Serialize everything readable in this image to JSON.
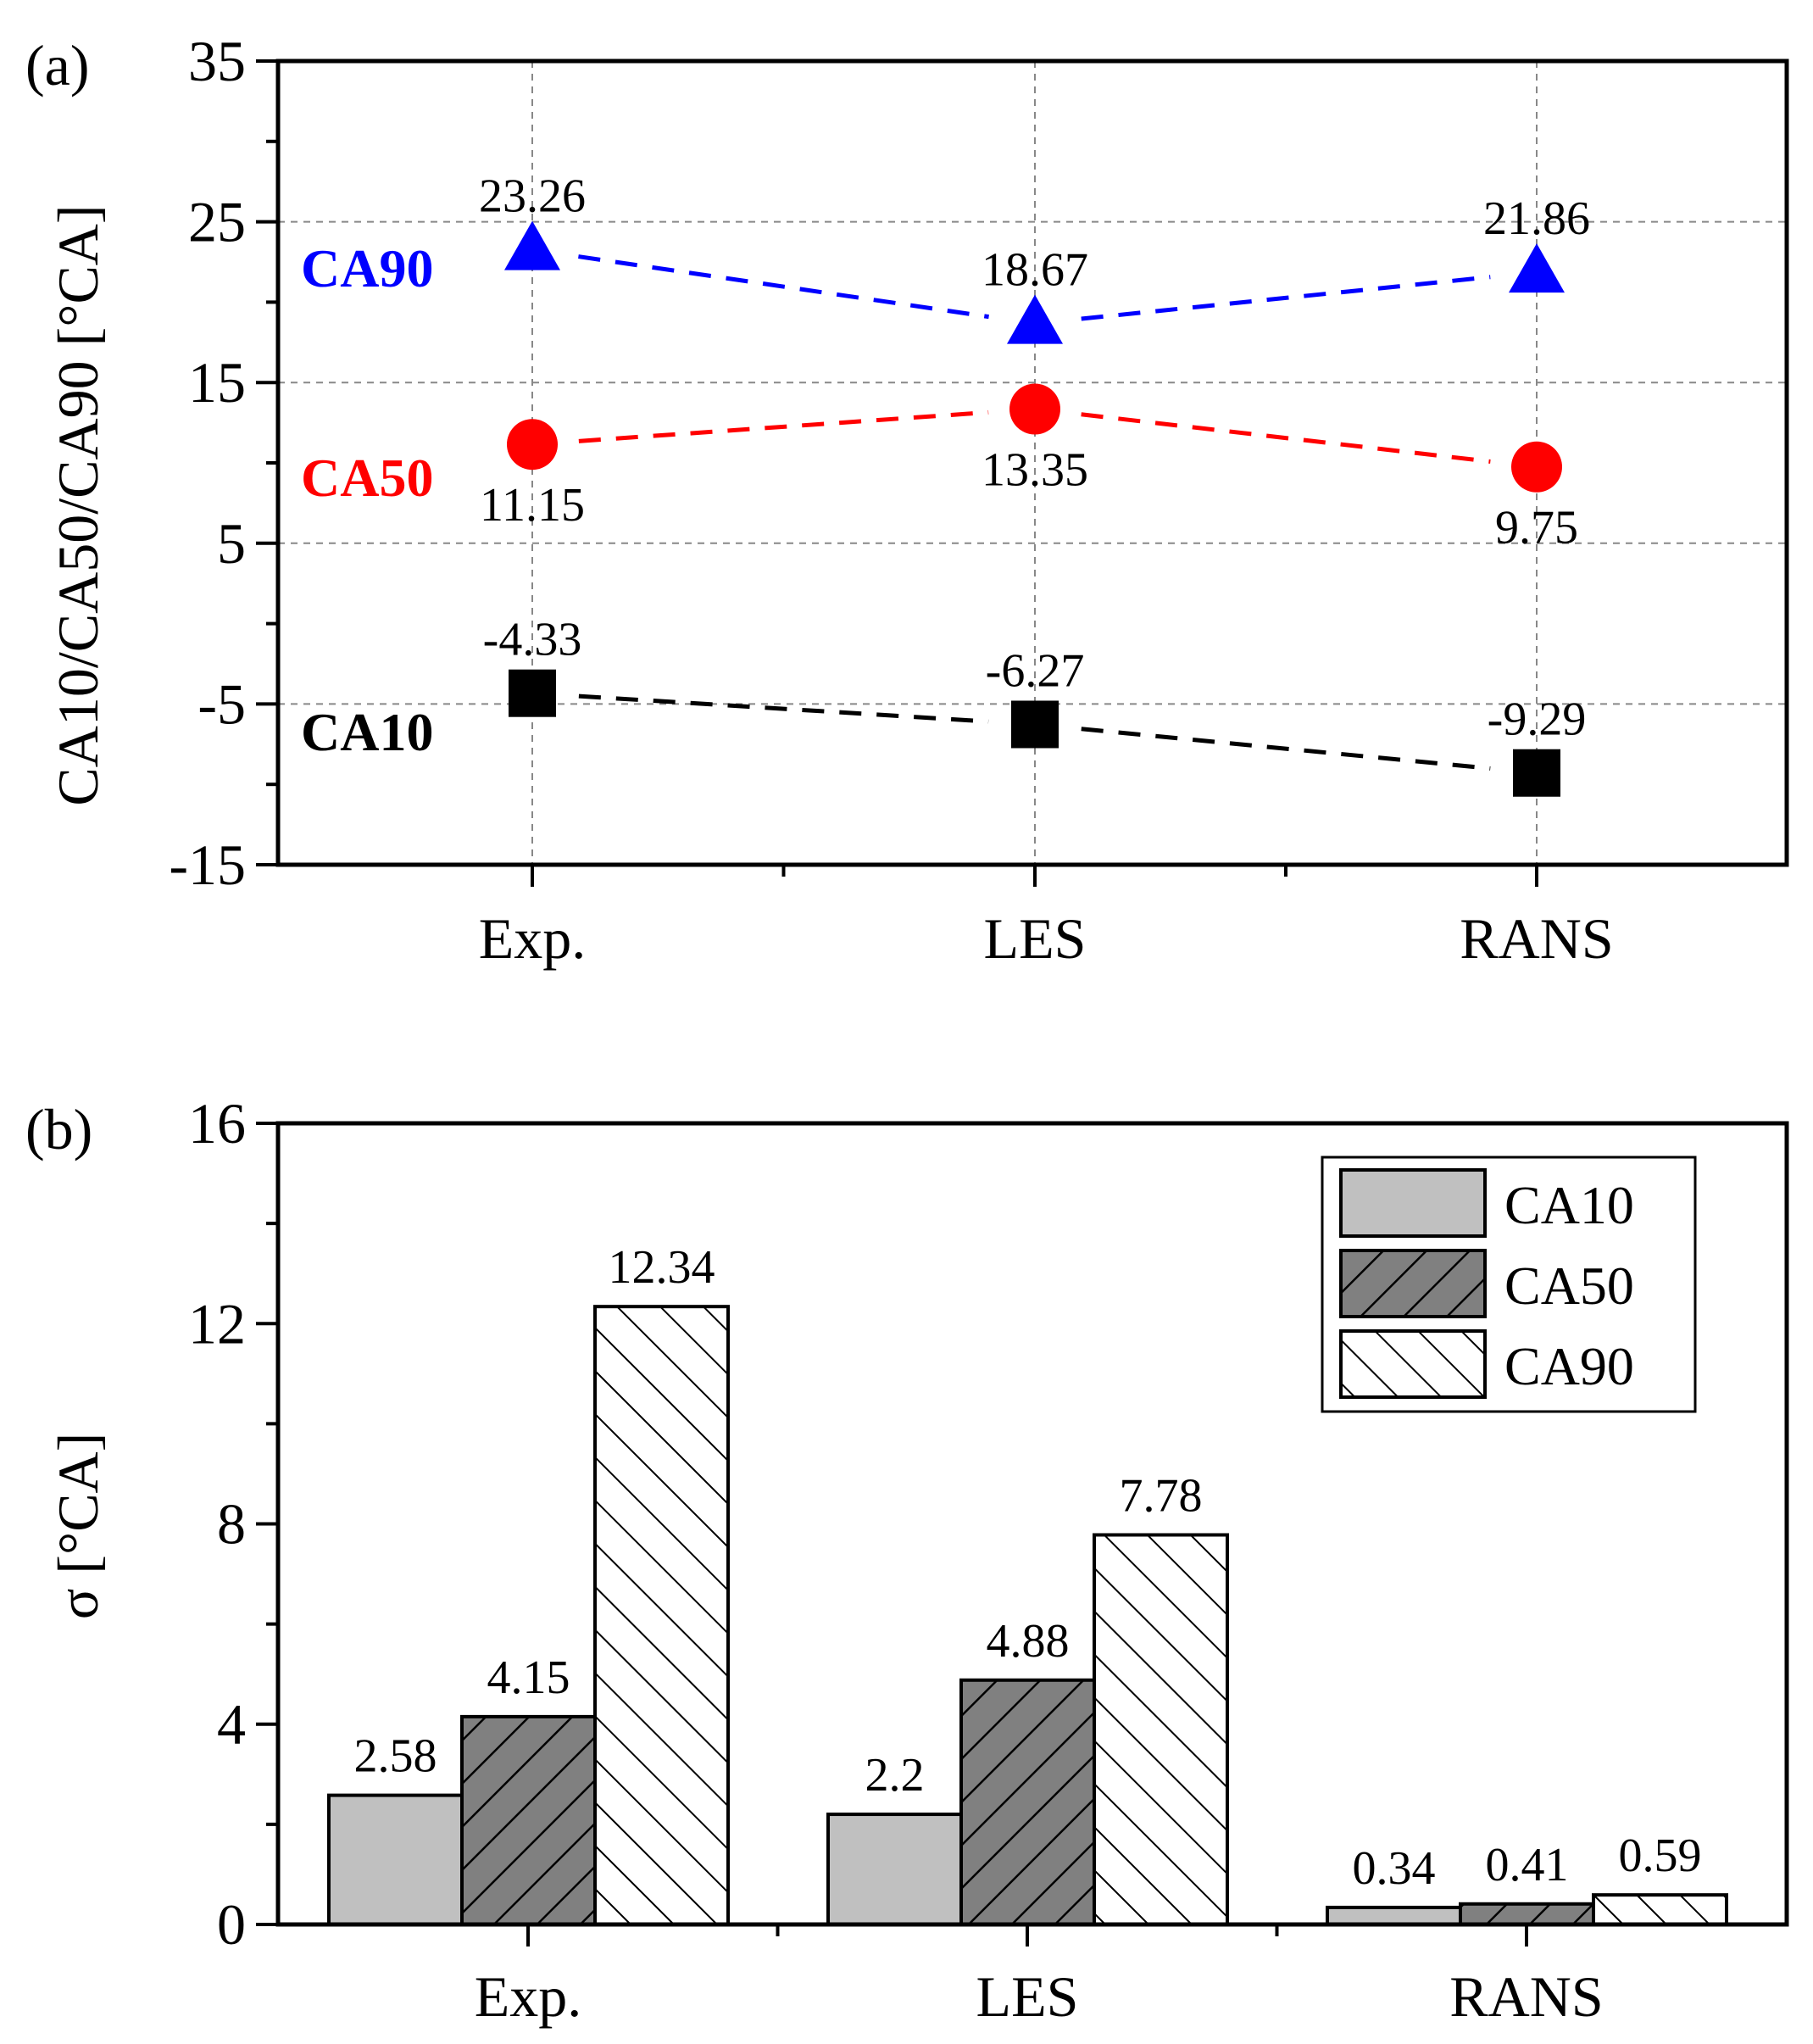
{
  "chart_data": [
    {
      "type": "line",
      "panel_label": "(a)",
      "categories": [
        "Exp.",
        "LES",
        "RANS"
      ],
      "ylabel": "CA10/CA50/CA90 [°CA]",
      "xlabel": "",
      "ylim": [
        -15,
        35
      ],
      "yticks": [
        -15,
        -5,
        5,
        15,
        25,
        35
      ],
      "grid": true,
      "series": [
        {
          "name": "CA90",
          "color": "#0000ff",
          "marker": "triangle",
          "values": [
            23.26,
            18.67,
            21.86
          ],
          "labels": [
            "23.26",
            "18.67",
            "21.86"
          ],
          "label_position": "above"
        },
        {
          "name": "CA50",
          "color": "#ff0000",
          "marker": "circle",
          "values": [
            11.15,
            13.35,
            9.75
          ],
          "labels": [
            "11.15",
            "13.35",
            "9.75"
          ],
          "label_position": "below"
        },
        {
          "name": "CA10",
          "color": "#000000",
          "marker": "square",
          "values": [
            -4.33,
            -6.27,
            -9.29
          ],
          "labels": [
            "-4.33",
            "-6.27",
            "-9.29"
          ],
          "label_position": "above"
        }
      ]
    },
    {
      "type": "bar",
      "panel_label": "(b)",
      "categories": [
        "Exp.",
        "LES",
        "RANS"
      ],
      "ylabel": "σ [°CA]",
      "xlabel": "",
      "ylim": [
        0,
        16
      ],
      "yticks": [
        0,
        4,
        8,
        12,
        16
      ],
      "grid": false,
      "legend_position": "top-right",
      "series": [
        {
          "name": "CA10",
          "fill": "#c0c0c0",
          "pattern": "solid",
          "values": [
            2.58,
            2.2,
            0.34
          ],
          "labels": [
            "2.58",
            "2.2",
            "0.34"
          ]
        },
        {
          "name": "CA50",
          "fill": "#808080",
          "pattern": "forward-hatch",
          "values": [
            4.15,
            4.88,
            0.41
          ],
          "labels": [
            "4.15",
            "4.88",
            "0.41"
          ]
        },
        {
          "name": "CA90",
          "fill": "#ffffff",
          "pattern": "back-hatch",
          "values": [
            12.34,
            7.78,
            0.59
          ],
          "labels": [
            "12.34",
            "7.78",
            "0.59"
          ]
        }
      ]
    }
  ]
}
